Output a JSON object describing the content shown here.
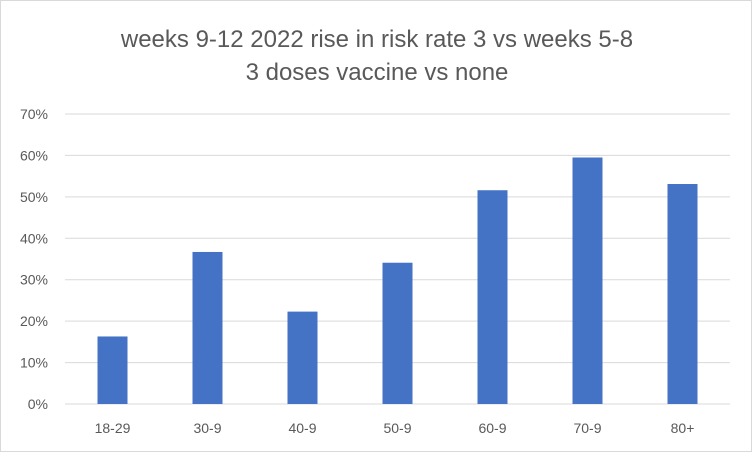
{
  "chart_data": {
    "type": "bar",
    "title_lines": [
      "weeks 9-12 2022 rise in risk rate 3 vs weeks 5-8",
      "3 doses vaccine vs none"
    ],
    "categories": [
      "18-29",
      "30-9",
      "40-9",
      "50-9",
      "60-9",
      "70-9",
      "80+"
    ],
    "values": [
      0.163,
      0.367,
      0.223,
      0.341,
      0.516,
      0.595,
      0.531
    ],
    "y_ticks": [
      "0%",
      "10%",
      "20%",
      "30%",
      "40%",
      "50%",
      "60%",
      "70%"
    ],
    "ylim": [
      0,
      0.7
    ],
    "grid": true,
    "legend": "none",
    "colors": {
      "bar": "#4472c4",
      "grid": "#d9d9d9",
      "text": "#595959"
    }
  }
}
